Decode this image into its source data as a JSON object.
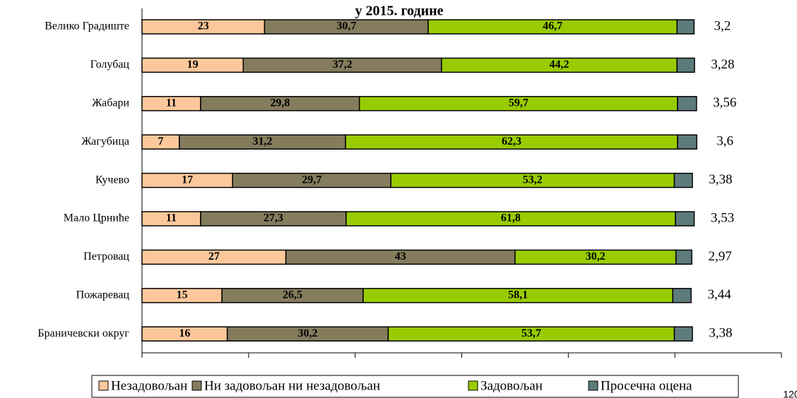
{
  "chart_data": {
    "type": "stacked-barh",
    "title": "у 2015. године",
    "categories": [
      "Велико Градиште",
      "Голубац",
      "Жабари",
      "Жагубица",
      "Кучево",
      "Мало Црниће",
      "Петровац",
      "Пожаревац",
      "Браничевски округ"
    ],
    "series": [
      {
        "name": "Незадовољан",
        "color": "#fcc89b",
        "values": [
          23,
          19,
          11,
          7,
          17,
          11,
          27,
          15,
          16
        ]
      },
      {
        "name": "Ни задовољан ни незадовољан",
        "color": "#847c5d",
        "values": [
          30.7,
          37.2,
          29.8,
          31.2,
          29.7,
          27.3,
          43,
          26.5,
          30.2
        ],
        "value_labels": [
          "30,7",
          "37,2",
          "29,8",
          "31,2",
          "29,7",
          "27,3",
          "43",
          "26,5",
          "30,2"
        ]
      },
      {
        "name": "Задовољан",
        "color": "#99cc00",
        "values": [
          46.7,
          44.2,
          59.7,
          62.3,
          53.2,
          61.8,
          30.2,
          58.1,
          53.7
        ],
        "value_labels": [
          "46,7",
          "44,2",
          "59,7",
          "62,3",
          "53,2",
          "61,8",
          "30,2",
          "58,1",
          "53,7"
        ]
      },
      {
        "name": "Просечна оцена",
        "color": "#5e7b7c",
        "values": [
          3.2,
          3.28,
          3.56,
          3.6,
          3.38,
          3.53,
          2.97,
          3.44,
          3.38
        ],
        "value_labels": [
          "3,2",
          "3,28",
          "3,56",
          "3,6",
          "3,38",
          "3,53",
          "2,97",
          "3,44",
          "3,38"
        ]
      }
    ],
    "xlim": [
      0,
      120
    ],
    "xticks": [
      0,
      20,
      40,
      60,
      80,
      100,
      120
    ]
  }
}
